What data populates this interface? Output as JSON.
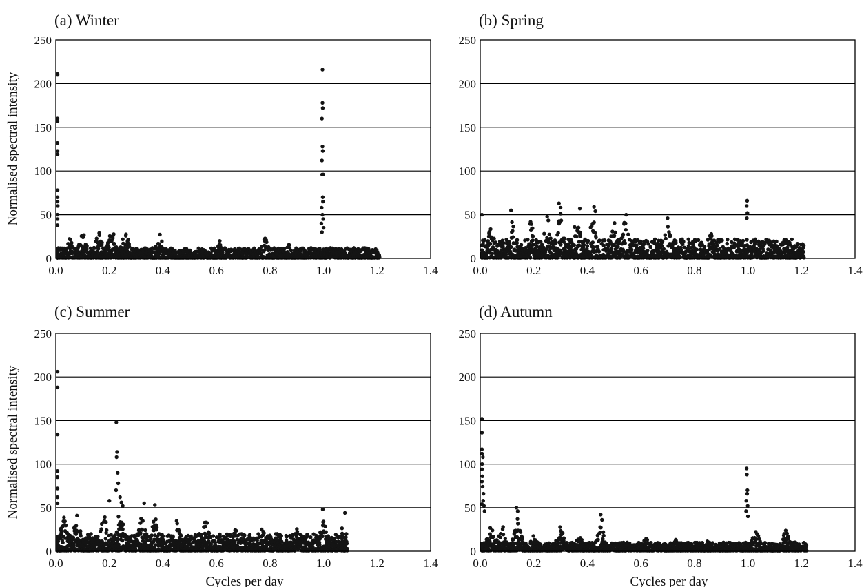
{
  "colors": {
    "points": "#141414",
    "axes": "#000000",
    "grid": "#000000",
    "background": "#ffffff"
  },
  "chart_data": [
    {
      "type": "scatter",
      "title": "(a) Winter",
      "xlabel": "",
      "ylabel": "Normalised spectral intensity",
      "xlim": [
        0,
        1.4
      ],
      "ylim": [
        0,
        250
      ],
      "xticks": [
        "0.0",
        "0.2",
        "0.4",
        "0.6",
        "0.8",
        "1.0",
        "1.2",
        "1.4"
      ],
      "yticks": [
        "0",
        "50",
        "100",
        "150",
        "200",
        "250"
      ],
      "grid": "horizontal",
      "x_range_of_points": [
        0,
        1.21
      ],
      "peaks": [
        {
          "x": 0.0,
          "y": 211
        },
        {
          "x": 0.002,
          "y": 210
        },
        {
          "x": 0.004,
          "y": 160
        },
        {
          "x": 0.002,
          "y": 157
        },
        {
          "x": 0.004,
          "y": 132
        },
        {
          "x": 0.002,
          "y": 123
        },
        {
          "x": 0.003,
          "y": 119
        },
        {
          "x": 0.004,
          "y": 78
        },
        {
          "x": 0.006,
          "y": 70
        },
        {
          "x": 0.003,
          "y": 65
        },
        {
          "x": 0.007,
          "y": 60
        },
        {
          "x": 0.004,
          "y": 50
        },
        {
          "x": 0.002,
          "y": 45
        },
        {
          "x": 0.005,
          "y": 38
        },
        {
          "x": 0.996,
          "y": 216
        },
        {
          "x": 0.996,
          "y": 178
        },
        {
          "x": 0.997,
          "y": 172
        },
        {
          "x": 0.994,
          "y": 160
        },
        {
          "x": 0.996,
          "y": 128
        },
        {
          "x": 0.997,
          "y": 123
        },
        {
          "x": 0.994,
          "y": 112
        },
        {
          "x": 0.995,
          "y": 96
        },
        {
          "x": 0.999,
          "y": 96
        },
        {
          "x": 0.997,
          "y": 70
        },
        {
          "x": 0.998,
          "y": 65
        },
        {
          "x": 0.993,
          "y": 58
        },
        {
          "x": 0.996,
          "y": 50
        },
        {
          "x": 0.999,
          "y": 45
        },
        {
          "x": 0.992,
          "y": 40
        },
        {
          "x": 1.0,
          "y": 35
        },
        {
          "x": 0.994,
          "y": 30
        }
      ],
      "clusters": [
        {
          "x": 0.05,
          "y": 26
        },
        {
          "x": 0.1,
          "y": 33
        },
        {
          "x": 0.16,
          "y": 35
        },
        {
          "x": 0.21,
          "y": 37
        },
        {
          "x": 0.26,
          "y": 35
        },
        {
          "x": 0.39,
          "y": 31
        },
        {
          "x": 0.61,
          "y": 23
        },
        {
          "x": 0.78,
          "y": 26
        },
        {
          "x": 0.87,
          "y": 18
        }
      ],
      "baseline_max": 12
    },
    {
      "type": "scatter",
      "title": "(b) Spring",
      "xlabel": "",
      "ylabel": "",
      "xlim": [
        0,
        1.4
      ],
      "ylim": [
        0,
        250
      ],
      "xticks": [
        "0.0",
        "0.2",
        "0.4",
        "0.6",
        "0.8",
        "1.0",
        "1.2",
        "1.4"
      ],
      "yticks": [
        "0",
        "50",
        "100",
        "150",
        "200",
        "250"
      ],
      "grid": "horizontal",
      "x_range_of_points": [
        0,
        1.21
      ],
      "peaks": [
        {
          "x": 0.997,
          "y": 66
        },
        {
          "x": 0.995,
          "y": 60
        },
        {
          "x": 0.998,
          "y": 52
        },
        {
          "x": 0.996,
          "y": 46
        },
        {
          "x": 0.294,
          "y": 63
        },
        {
          "x": 0.3,
          "y": 58
        },
        {
          "x": 0.425,
          "y": 59
        },
        {
          "x": 0.372,
          "y": 57
        },
        {
          "x": 0.43,
          "y": 54
        },
        {
          "x": 0.115,
          "y": 55
        },
        {
          "x": 0.545,
          "y": 50
        },
        {
          "x": 0.7,
          "y": 46
        },
        {
          "x": 0.0,
          "y": 50
        }
      ],
      "clusters": [
        {
          "x": 0.04,
          "y": 38
        },
        {
          "x": 0.12,
          "y": 44
        },
        {
          "x": 0.19,
          "y": 45
        },
        {
          "x": 0.25,
          "y": 52
        },
        {
          "x": 0.3,
          "y": 55
        },
        {
          "x": 0.36,
          "y": 50
        },
        {
          "x": 0.42,
          "y": 52
        },
        {
          "x": 0.5,
          "y": 44
        },
        {
          "x": 0.54,
          "y": 48
        },
        {
          "x": 0.6,
          "y": 28
        },
        {
          "x": 0.7,
          "y": 42
        },
        {
          "x": 0.78,
          "y": 25
        },
        {
          "x": 0.86,
          "y": 32
        },
        {
          "x": 0.93,
          "y": 22
        },
        {
          "x": 1.06,
          "y": 12
        },
        {
          "x": 1.18,
          "y": 14
        }
      ],
      "baseline_max": 22
    },
    {
      "type": "scatter",
      "title": "(c) Summer",
      "xlabel": "Cycles per day",
      "ylabel": "Normalised spectral intensity",
      "xlim": [
        0,
        1.4
      ],
      "ylim": [
        0,
        250
      ],
      "xticks": [
        "0.0",
        "0.2",
        "0.4",
        "0.6",
        "0.8",
        "1.0",
        "1.2",
        "1.4"
      ],
      "yticks": [
        "0",
        "50",
        "100",
        "150",
        "200",
        "250"
      ],
      "grid": "horizontal",
      "x_range_of_points": [
        0,
        1.09
      ],
      "peaks": [
        {
          "x": 0.0,
          "y": 206
        },
        {
          "x": 0.001,
          "y": 188
        },
        {
          "x": 0.003,
          "y": 134
        },
        {
          "x": 0.004,
          "y": 92
        },
        {
          "x": 0.002,
          "y": 85
        },
        {
          "x": 0.005,
          "y": 72
        },
        {
          "x": 0.003,
          "y": 62
        },
        {
          "x": 0.006,
          "y": 55
        },
        {
          "x": 0.226,
          "y": 148
        },
        {
          "x": 0.229,
          "y": 114
        },
        {
          "x": 0.227,
          "y": 108
        },
        {
          "x": 0.231,
          "y": 90
        },
        {
          "x": 0.233,
          "y": 78
        },
        {
          "x": 0.225,
          "y": 70
        },
        {
          "x": 0.24,
          "y": 62
        },
        {
          "x": 0.245,
          "y": 56
        },
        {
          "x": 0.25,
          "y": 52
        },
        {
          "x": 0.2,
          "y": 58
        },
        {
          "x": 0.33,
          "y": 55
        },
        {
          "x": 0.37,
          "y": 53
        },
        {
          "x": 0.997,
          "y": 48
        },
        {
          "x": 1.08,
          "y": 44
        }
      ],
      "clusters": [
        {
          "x": 0.03,
          "y": 40
        },
        {
          "x": 0.08,
          "y": 44
        },
        {
          "x": 0.13,
          "y": 30
        },
        {
          "x": 0.18,
          "y": 45
        },
        {
          "x": 0.24,
          "y": 50
        },
        {
          "x": 0.32,
          "y": 48
        },
        {
          "x": 0.37,
          "y": 42
        },
        {
          "x": 0.45,
          "y": 38
        },
        {
          "x": 0.56,
          "y": 40
        },
        {
          "x": 0.67,
          "y": 28
        },
        {
          "x": 0.77,
          "y": 28
        },
        {
          "x": 0.9,
          "y": 26
        },
        {
          "x": 1.0,
          "y": 38
        },
        {
          "x": 1.07,
          "y": 30
        }
      ],
      "baseline_max": 20
    },
    {
      "type": "scatter",
      "title": "(d) Autumn",
      "xlabel": "Cycles per day",
      "ylabel": "",
      "xlim": [
        0,
        1.4
      ],
      "ylim": [
        0,
        250
      ],
      "xticks": [
        "0.0",
        "0.2",
        "0.4",
        "0.6",
        "0.8",
        "1.0",
        "1.2",
        "1.4"
      ],
      "yticks": [
        "0",
        "50",
        "100",
        "150",
        "200",
        "250"
      ],
      "grid": "horizontal",
      "x_range_of_points": [
        0,
        1.22
      ],
      "peaks": [
        {
          "x": 0.0,
          "y": 152
        },
        {
          "x": 0.001,
          "y": 136
        },
        {
          "x": 0.004,
          "y": 117
        },
        {
          "x": 0.006,
          "y": 112
        },
        {
          "x": 0.01,
          "y": 108
        },
        {
          "x": 0.007,
          "y": 100
        },
        {
          "x": 0.003,
          "y": 94
        },
        {
          "x": 0.008,
          "y": 86
        },
        {
          "x": 0.005,
          "y": 80
        },
        {
          "x": 0.009,
          "y": 74
        },
        {
          "x": 0.012,
          "y": 66
        },
        {
          "x": 0.011,
          "y": 58
        },
        {
          "x": 0.014,
          "y": 52
        },
        {
          "x": 0.016,
          "y": 46
        },
        {
          "x": 0.004,
          "y": 54
        },
        {
          "x": 0.995,
          "y": 95
        },
        {
          "x": 0.996,
          "y": 88
        },
        {
          "x": 0.998,
          "y": 70
        },
        {
          "x": 0.997,
          "y": 66
        },
        {
          "x": 0.994,
          "y": 58
        },
        {
          "x": 0.999,
          "y": 52
        },
        {
          "x": 0.993,
          "y": 46
        },
        {
          "x": 1.0,
          "y": 40
        },
        {
          "x": 0.135,
          "y": 50
        },
        {
          "x": 0.14,
          "y": 46
        },
        {
          "x": 0.45,
          "y": 42
        },
        {
          "x": 0.455,
          "y": 36
        }
      ],
      "clusters": [
        {
          "x": 0.04,
          "y": 30
        },
        {
          "x": 0.08,
          "y": 34
        },
        {
          "x": 0.14,
          "y": 40
        },
        {
          "x": 0.2,
          "y": 22
        },
        {
          "x": 0.3,
          "y": 30
        },
        {
          "x": 0.37,
          "y": 20
        },
        {
          "x": 0.45,
          "y": 32
        },
        {
          "x": 0.62,
          "y": 16
        },
        {
          "x": 0.73,
          "y": 14
        },
        {
          "x": 0.85,
          "y": 14
        },
        {
          "x": 0.91,
          "y": 12
        },
        {
          "x": 1.03,
          "y": 26
        },
        {
          "x": 1.14,
          "y": 26
        },
        {
          "x": 1.18,
          "y": 12
        }
      ],
      "baseline_max": 10
    }
  ]
}
